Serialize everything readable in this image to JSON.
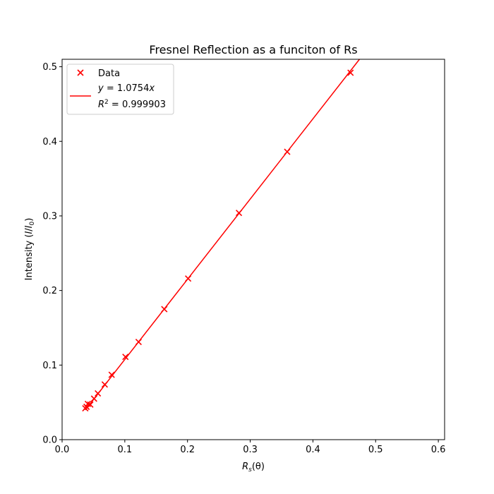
{
  "chart_data": {
    "type": "scatter",
    "title": "Fresnel Reflection as a funciton of Rs",
    "xlabel": {
      "base": "R",
      "sub": "s",
      "rest": "(θ)"
    },
    "ylabel": {
      "pre": "Intensity (",
      "I": "I",
      "slash": "/",
      "I0": "I",
      "sub": "0",
      "post": ")"
    },
    "xlim": [
      0.0,
      0.61
    ],
    "ylim": [
      0.0,
      0.51
    ],
    "xticks": [
      0.0,
      0.1,
      0.2,
      0.3,
      0.4,
      0.5,
      0.6
    ],
    "yticks": [
      0.0,
      0.1,
      0.2,
      0.3,
      0.4,
      0.5
    ],
    "xtick_labels": [
      "0.0",
      "0.1",
      "0.2",
      "0.3",
      "0.4",
      "0.5",
      "0.6"
    ],
    "ytick_labels": [
      "0.0",
      "0.1",
      "0.2",
      "0.3",
      "0.4",
      "0.5"
    ],
    "grid": false,
    "legend_position": "top-left",
    "color": "#ff0000",
    "series": [
      {
        "name": "Data",
        "kind": "scatter",
        "marker": "x",
        "points": [
          [
            0.037,
            0.042
          ],
          [
            0.039,
            0.044
          ],
          [
            0.041,
            0.048
          ],
          [
            0.045,
            0.047
          ],
          [
            0.051,
            0.055
          ],
          [
            0.057,
            0.062
          ],
          [
            0.068,
            0.074
          ],
          [
            0.079,
            0.087
          ],
          [
            0.101,
            0.111
          ],
          [
            0.122,
            0.131
          ],
          [
            0.163,
            0.175
          ],
          [
            0.201,
            0.216
          ],
          [
            0.282,
            0.304
          ],
          [
            0.359,
            0.386
          ],
          [
            0.46,
            0.492
          ]
        ]
      },
      {
        "kind": "line",
        "slope": 1.0754,
        "x_range": [
          0.037,
          0.48
        ],
        "legend_line1": {
          "pre": "y",
          "mid": " = 1.0754",
          "post": "x"
        },
        "legend_line2": {
          "pre": "R",
          "sup": "2",
          "post": " = 0.999903"
        }
      }
    ]
  }
}
